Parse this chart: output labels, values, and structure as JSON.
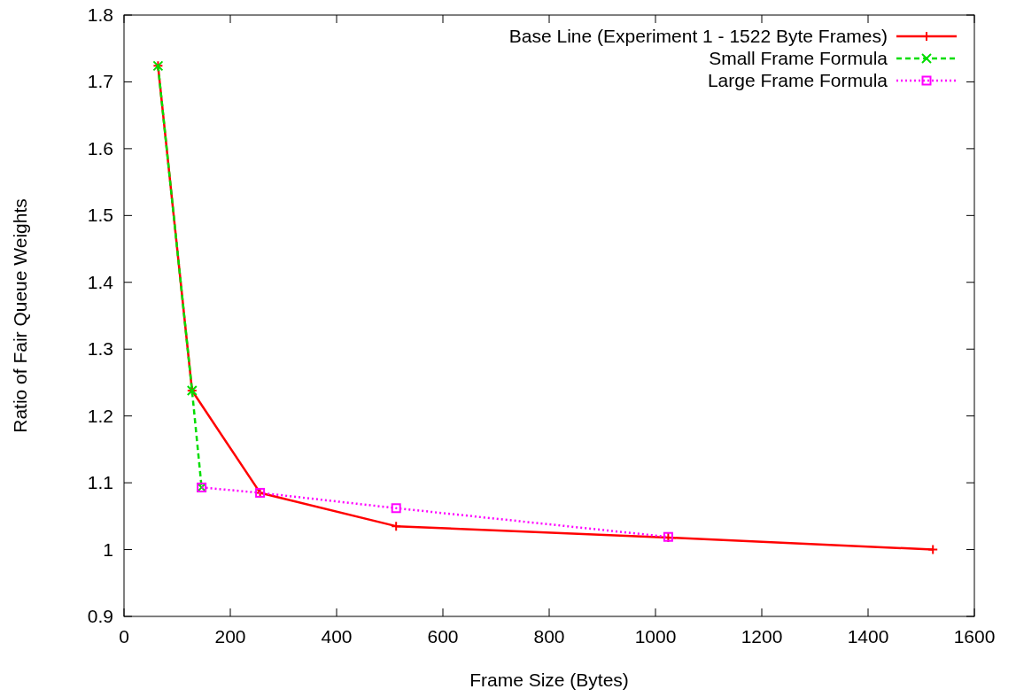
{
  "chart_data": {
    "type": "line",
    "xlabel": "Frame Size (Bytes)",
    "ylabel": "Ratio of Fair Queue Weights",
    "xlim": [
      0,
      1600
    ],
    "xticks": [
      0,
      200,
      400,
      600,
      800,
      1000,
      1200,
      1400,
      1600
    ],
    "ylim": [
      0.9,
      1.8
    ],
    "yticks": [
      0.9,
      1,
      1.1,
      1.2,
      1.3,
      1.4,
      1.5,
      1.6,
      1.7,
      1.8
    ],
    "grid": false,
    "legend": "top right",
    "series": [
      {
        "name": "Base Line (Experiment 1 - 1522 Byte Frames)",
        "color": "#ff0000",
        "marker": "cross",
        "line_style": "solid",
        "x": [
          64,
          128,
          256,
          512,
          1024,
          1522
        ],
        "values": [
          1.724,
          1.238,
          1.085,
          1.035,
          1.018,
          1.0
        ]
      },
      {
        "name": "Small Frame Formula",
        "color": "#00dd00",
        "marker": "x",
        "line_style": "dashed",
        "x": [
          64,
          128,
          146
        ],
        "values": [
          1.724,
          1.238,
          1.093
        ]
      },
      {
        "name": "Large Frame Formula",
        "color": "#ff00ff",
        "marker": "square",
        "line_style": "dotted",
        "x": [
          146,
          256,
          512,
          1024
        ],
        "values": [
          1.093,
          1.085,
          1.062,
          1.019
        ]
      }
    ]
  }
}
